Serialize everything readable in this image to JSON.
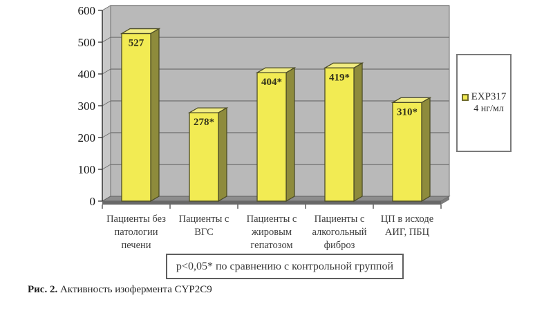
{
  "figure": {
    "caption_prefix": "Рис. 2.",
    "caption_text": " Активность изофермента CYP2C9"
  },
  "legend": {
    "series_label": "EXP317",
    "series_sublabel": "4 нг/мл"
  },
  "note": {
    "text": "p<0,05* по сравнению с контрольной группой"
  },
  "chart_data": {
    "type": "bar",
    "title": "Активность изофермента CYP2C9",
    "categories": [
      "Пациенты без патологии печени",
      "Пациенты с ВГС",
      "Пациенты с жировым гепатозом",
      "Пациенты с алкогольный фиброз",
      "ЦП в исходе АИГ, ПБЦ"
    ],
    "category_lines": [
      [
        "Пациенты без",
        "патологии",
        "печени"
      ],
      [
        "Пациенты с",
        "ВГС"
      ],
      [
        "Пациенты с",
        "жировым",
        "гепатозом"
      ],
      [
        "Пациенты с",
        "алкогольный",
        "фиброз"
      ],
      [
        "ЦП в исходе",
        "АИГ, ПБЦ"
      ]
    ],
    "series": [
      {
        "name": "EXP317 4 нг/мл",
        "values": [
          527,
          278,
          404,
          419,
          310
        ]
      }
    ],
    "value_labels": [
      "527",
      "278*",
      "404*",
      "419*",
      "310*"
    ],
    "xlabel": "",
    "ylabel": "",
    "ylim": [
      0,
      600
    ],
    "yticks": [
      0,
      100,
      200,
      300,
      400,
      500,
      600
    ],
    "grid": true,
    "style_3d": true,
    "legend_position": "right",
    "annotation": "p<0,05* по сравнению с контрольной группой",
    "colors": {
      "bar_front": "#f2eb53",
      "bar_top": "#f1ec82",
      "bar_side": "#8e8b3c",
      "bar_outline": "#4c4c26",
      "wall": "#b9b9b9",
      "side_wall": "#c8c8c8",
      "floor": "#8d8d8d",
      "floor_edge": "#686868",
      "gridline": "#6e6e6e",
      "axis": "#333333",
      "tick_label": "#111111",
      "category_label": "#3c3c3c",
      "value_label": "#33331c"
    }
  }
}
